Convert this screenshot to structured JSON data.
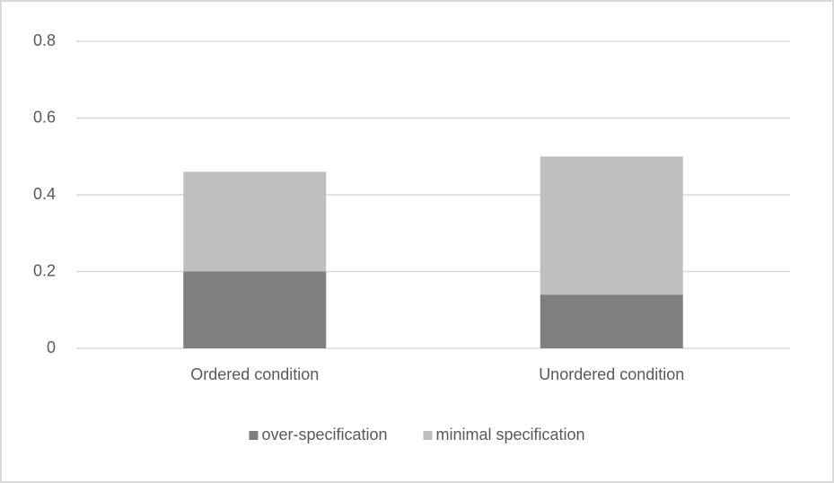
{
  "chart_data": {
    "type": "stacked_bar",
    "categories": [
      "Ordered condition",
      "Unordered condition"
    ],
    "series": [
      {
        "name": "over-specification",
        "color": "#7f7f7f",
        "values": [
          0.2,
          0.14
        ]
      },
      {
        "name": "minimal specification",
        "color": "#bfbfbf",
        "values": [
          0.26,
          0.36
        ]
      }
    ],
    "ylim": [
      0,
      0.8
    ],
    "yticks": [
      0,
      0.2,
      0.4,
      0.6,
      0.8
    ],
    "grid": true,
    "legend": "bottom"
  }
}
